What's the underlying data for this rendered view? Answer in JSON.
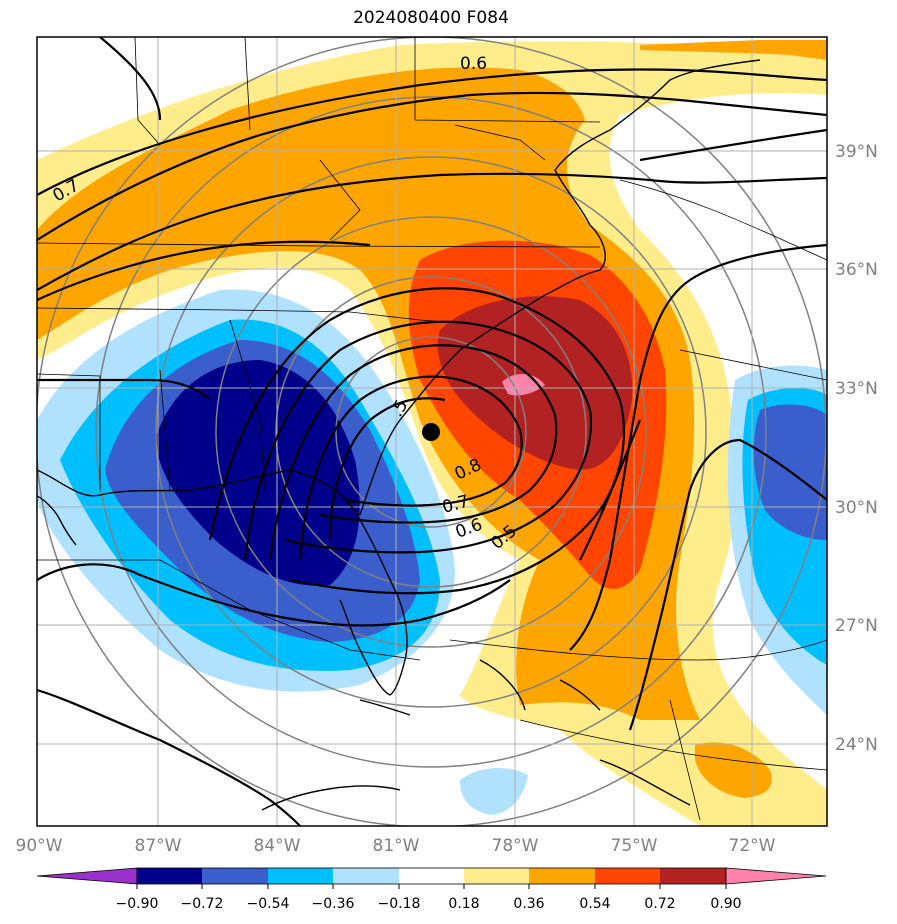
{
  "title": "2024080400 F084",
  "lat_labels": [
    "39°N",
    "36°N",
    "33°N",
    "30°N",
    "27°N",
    "24°N"
  ],
  "lon_labels": [
    "90°W",
    "87°W",
    "84°W",
    "81°W",
    "78°W",
    "75°W",
    "72°W"
  ],
  "colorbar": {
    "ticks": [
      "−0.90",
      "−0.72",
      "−0.54",
      "−0.36",
      "−0.18",
      "0.18",
      "0.36",
      "0.54",
      "0.72",
      "0.90"
    ],
    "colors": [
      "#9932cc",
      "#00008b",
      "#3a5fcd",
      "#00bfff",
      "#b0e2ff",
      "#ffffff",
      "#ffec8b",
      "#ffa500",
      "#ff4500",
      "#b22222",
      "#ff82ab"
    ]
  },
  "contour_labels": [
    "0.6",
    "0.7",
    "0.8",
    "0.7",
    "0.6",
    "0.5",
    ".5"
  ],
  "colors": {
    "neg_90": "#00008b",
    "neg_72": "#3a5fcd",
    "neg_54": "#00bfff",
    "neg_36": "#b0e2ff",
    "pos_18": "#ffec8b",
    "pos_36": "#ffa500",
    "pos_54": "#ff4500",
    "pos_72": "#b22222",
    "pos_90": "#ff82ab"
  }
}
